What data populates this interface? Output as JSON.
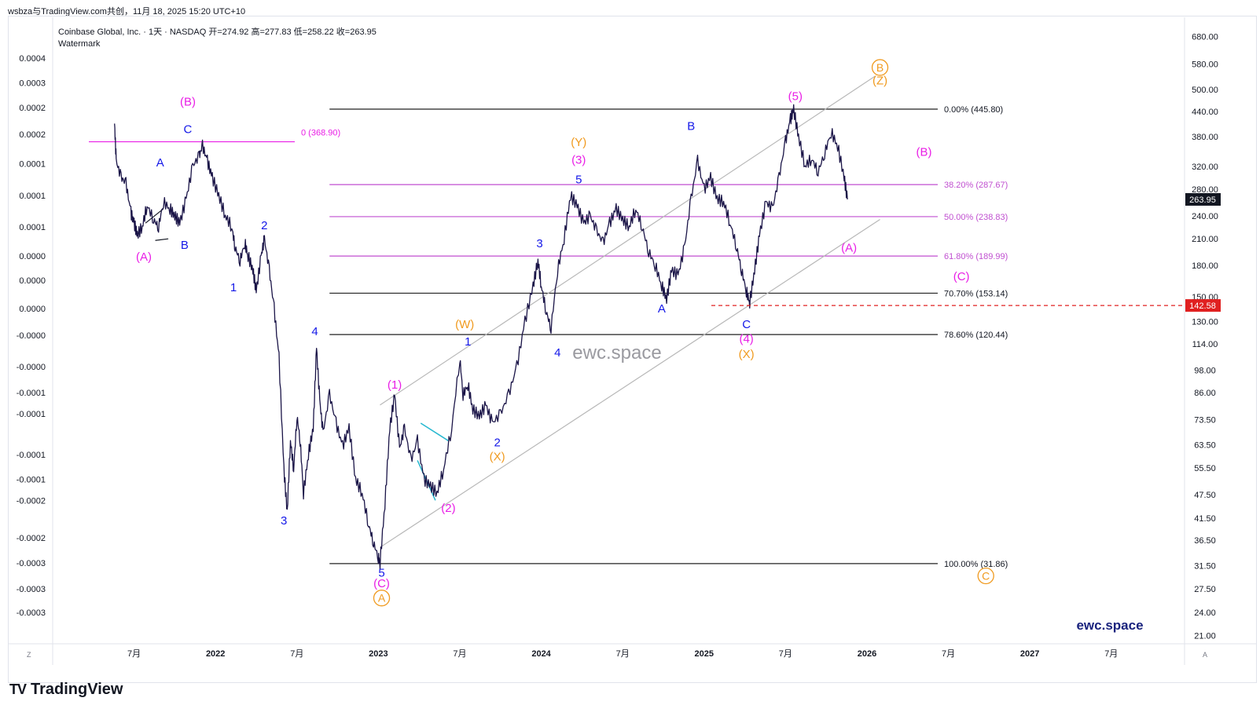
{
  "header": {
    "title": "wsbza与TradingView.com共创，11月 18, 2025 15:20 UTC+10"
  },
  "legend": {
    "symbol": "Coinbase Global, Inc. · 1天 · NASDAQ",
    "open": "开=274.92",
    "high": "高=277.83",
    "low": "低=258.22",
    "close": "收=263.95",
    "indicator": "Watermark"
  },
  "brand": {
    "name": "TradingView",
    "logo": "TV"
  },
  "watermarks": {
    "center": "ewc.space",
    "corner": "ewc.space"
  },
  "colors": {
    "candle": "#1a1447",
    "magenta": "#e91ee6",
    "blue": "#1418e8",
    "orange": "#f09a1e",
    "fib_magenta": "#c04fd0",
    "fib_black": "#222222",
    "channel": "#b8b8b8",
    "cyan": "#27b8d0",
    "red": "#e02020"
  },
  "corner_labels": {
    "left": "Z",
    "right": "A"
  },
  "chart_data": {
    "type": "line",
    "title": "",
    "x_axis": {
      "labels": [
        "7月",
        "2022",
        "7月",
        "2023",
        "7月",
        "2024",
        "7月",
        "2025",
        "7月",
        "2026",
        "7月",
        "2027",
        "7月"
      ]
    },
    "right_axis": {
      "scale": "log",
      "ylim": [
        20,
        760
      ],
      "labels": [
        680,
        580,
        500,
        440,
        380,
        320,
        280,
        240,
        210,
        180,
        150,
        130,
        114,
        98,
        86,
        73.5,
        63.5,
        55.5,
        47.5,
        41.5,
        36.5,
        31.5,
        27.5,
        24,
        21
      ],
      "label_texts": [
        "680.00",
        "580.00",
        "500.00",
        "440.00",
        "380.00",
        "320.00",
        "280.00",
        "240.00",
        "210.00",
        "180.00",
        "150.00",
        "130.00",
        "114.00",
        "98.00",
        "86.00",
        "73.50",
        "63.50",
        "55.50",
        "47.50",
        "41.50",
        "36.50",
        "31.50",
        "27.50",
        "24.00",
        "21.00"
      ],
      "current_price": {
        "value": 263.95,
        "label": "263.95"
      },
      "alert_price": {
        "value": 142.58,
        "label": "142.58"
      }
    },
    "left_axis": {
      "labels": [
        "0.0004",
        "0.0003",
        "0.0002",
        "0.0002",
        "0.0001",
        "0.0001",
        "0.0001",
        "0.0000",
        "0.0000",
        "0.0000",
        "-0.0000",
        "-0.0000",
        "-0.0001",
        "-0.0001",
        "-0.0001",
        "-0.0001",
        "-0.0002",
        "-0.0002",
        "-0.0003",
        "-0.0003",
        "-0.0003"
      ],
      "values": [
        600,
        520,
        450,
        385,
        325,
        270,
        225,
        190,
        165,
        140,
        120,
        100,
        86,
        76,
        60,
        52,
        46,
        37,
        32,
        27.5,
        24
      ]
    },
    "series": [
      {
        "values": [
          [
            2021.38,
            410
          ],
          [
            2021.39,
            330
          ],
          [
            2021.42,
            300
          ],
          [
            2021.45,
            290
          ],
          [
            2021.48,
            245
          ],
          [
            2021.5,
            230
          ],
          [
            2021.52,
            215
          ],
          [
            2021.55,
            225
          ],
          [
            2021.58,
            255
          ],
          [
            2021.62,
            235
          ],
          [
            2021.65,
            225
          ],
          [
            2021.68,
            260
          ],
          [
            2021.72,
            250
          ],
          [
            2021.75,
            240
          ],
          [
            2021.78,
            230
          ],
          [
            2021.82,
            265
          ],
          [
            2021.86,
            320
          ],
          [
            2021.9,
            340
          ],
          [
            2021.92,
            360
          ],
          [
            2021.95,
            330
          ],
          [
            2021.98,
            300
          ],
          [
            2022.02,
            270
          ],
          [
            2022.06,
            240
          ],
          [
            2022.1,
            225
          ],
          [
            2022.12,
            200
          ],
          [
            2022.15,
            185
          ],
          [
            2022.18,
            205
          ],
          [
            2022.2,
            190
          ],
          [
            2022.23,
            175
          ],
          [
            2022.25,
            155
          ],
          [
            2022.28,
            190
          ],
          [
            2022.3,
            210
          ],
          [
            2022.33,
            175
          ],
          [
            2022.36,
            140
          ],
          [
            2022.39,
            105
          ],
          [
            2022.42,
            55
          ],
          [
            2022.44,
            43
          ],
          [
            2022.46,
            65
          ],
          [
            2022.48,
            55
          ],
          [
            2022.5,
            75
          ],
          [
            2022.52,
            65
          ],
          [
            2022.54,
            48
          ],
          [
            2022.57,
            60
          ],
          [
            2022.6,
            70
          ],
          [
            2022.62,
            112
          ],
          [
            2022.64,
            82
          ],
          [
            2022.66,
            68
          ],
          [
            2022.7,
            85
          ],
          [
            2022.74,
            72
          ],
          [
            2022.78,
            63
          ],
          [
            2022.82,
            70
          ],
          [
            2022.86,
            52
          ],
          [
            2022.9,
            48
          ],
          [
            2022.94,
            40
          ],
          [
            2022.97,
            36
          ],
          [
            2023.0,
            33
          ],
          [
            2023.01,
            32
          ],
          [
            2023.04,
            45
          ],
          [
            2023.07,
            70
          ],
          [
            2023.1,
            85
          ],
          [
            2023.13,
            62
          ],
          [
            2023.16,
            70
          ],
          [
            2023.2,
            58
          ],
          [
            2023.24,
            65
          ],
          [
            2023.28,
            52
          ],
          [
            2023.32,
            50
          ],
          [
            2023.36,
            48
          ],
          [
            2023.4,
            55
          ],
          [
            2023.45,
            70
          ],
          [
            2023.5,
            105
          ],
          [
            2023.52,
            85
          ],
          [
            2023.55,
            90
          ],
          [
            2023.58,
            78
          ],
          [
            2023.62,
            75
          ],
          [
            2023.66,
            80
          ],
          [
            2023.7,
            72
          ],
          [
            2023.75,
            76
          ],
          [
            2023.8,
            85
          ],
          [
            2023.85,
            100
          ],
          [
            2023.9,
            130
          ],
          [
            2023.95,
            160
          ],
          [
            2023.98,
            185
          ],
          [
            2024.0,
            160
          ],
          [
            2024.03,
            138
          ],
          [
            2024.06,
            125
          ],
          [
            2024.1,
            175
          ],
          [
            2024.14,
            210
          ],
          [
            2024.18,
            270
          ],
          [
            2024.22,
            255
          ],
          [
            2024.26,
            230
          ],
          [
            2024.3,
            240
          ],
          [
            2024.34,
            220
          ],
          [
            2024.38,
            205
          ],
          [
            2024.42,
            230
          ],
          [
            2024.46,
            250
          ],
          [
            2024.5,
            235
          ],
          [
            2024.54,
            225
          ],
          [
            2024.58,
            250
          ],
          [
            2024.62,
            225
          ],
          [
            2024.66,
            195
          ],
          [
            2024.7,
            180
          ],
          [
            2024.74,
            160
          ],
          [
            2024.77,
            148
          ],
          [
            2024.8,
            175
          ],
          [
            2024.84,
            170
          ],
          [
            2024.88,
            200
          ],
          [
            2024.92,
            265
          ],
          [
            2024.96,
            330
          ],
          [
            2025.0,
            280
          ],
          [
            2025.04,
            300
          ],
          [
            2025.08,
            265
          ],
          [
            2025.12,
            260
          ],
          [
            2025.16,
            230
          ],
          [
            2025.2,
            200
          ],
          [
            2025.23,
            175
          ],
          [
            2025.26,
            155
          ],
          [
            2025.28,
            145
          ],
          [
            2025.31,
            175
          ],
          [
            2025.34,
            215
          ],
          [
            2025.38,
            260
          ],
          [
            2025.42,
            250
          ],
          [
            2025.46,
            300
          ],
          [
            2025.5,
            370
          ],
          [
            2025.53,
            420
          ],
          [
            2025.55,
            445
          ],
          [
            2025.58,
            380
          ],
          [
            2025.62,
            320
          ],
          [
            2025.66,
            335
          ],
          [
            2025.7,
            310
          ],
          [
            2025.74,
            345
          ],
          [
            2025.78,
            390
          ],
          [
            2025.82,
            360
          ],
          [
            2025.86,
            300
          ],
          [
            2025.88,
            263.95
          ]
        ]
      }
    ],
    "fib_levels": [
      {
        "value": 445.8,
        "label": "0.00% (445.80)",
        "color_key": "fib_black"
      },
      {
        "value": 287.67,
        "label": "38.20% (287.67)",
        "color_key": "fib_magenta"
      },
      {
        "value": 238.83,
        "label": "50.00% (238.83)",
        "color_key": "fib_magenta"
      },
      {
        "value": 189.99,
        "label": "61.80% (189.99)",
        "color_key": "fib_magenta"
      },
      {
        "value": 153.14,
        "label": "70.70% (153.14)",
        "color_key": "fib_black"
      },
      {
        "value": 120.44,
        "label": "78.60% (120.44)",
        "color_key": "fib_black"
      },
      {
        "value": 31.86,
        "label": "100.00% (31.86)",
        "color_key": "fib_black"
      }
    ],
    "old_fib": {
      "value": 368.9,
      "label": "0 (368.90)",
      "x_start": 2021.58,
      "x_end": 2022.65
    },
    "fib_x_range": [
      2022.7,
      2025.8
    ],
    "channel_lines": [
      {
        "from": [
          2023.01,
          80
        ],
        "to": [
          2026.05,
          540
        ]
      },
      {
        "from": [
          2023.01,
          35
        ],
        "to": [
          2026.08,
          235
        ]
      }
    ],
    "cyan_lines": [
      {
        "from": [
          2023.26,
          72
        ],
        "to": [
          2023.43,
          65
        ]
      },
      {
        "from": [
          2023.24,
          58
        ],
        "to": [
          2023.35,
          46
        ]
      }
    ],
    "black_small_lines": [
      {
        "from": [
          2021.57,
          230
        ],
        "to": [
          2021.68,
          250
        ]
      },
      {
        "from": [
          2021.63,
          208
        ],
        "to": [
          2021.71,
          210
        ]
      }
    ],
    "wave_labels": [
      {
        "x": 2021.56,
        "y": 185,
        "text": "(A)",
        "color_key": "magenta"
      },
      {
        "x": 2021.83,
        "y": 455,
        "text": "(B)",
        "color_key": "magenta"
      },
      {
        "x": 2021.83,
        "y": 388,
        "text": "C",
        "color_key": "blue"
      },
      {
        "x": 2021.66,
        "y": 320,
        "text": "A",
        "color_key": "blue"
      },
      {
        "x": 2021.81,
        "y": 198,
        "text": "B",
        "color_key": "blue"
      },
      {
        "x": 2022.11,
        "y": 155,
        "text": "1",
        "color_key": "blue"
      },
      {
        "x": 2022.3,
        "y": 222,
        "text": "2",
        "color_key": "blue"
      },
      {
        "x": 2022.42,
        "y": 40,
        "text": "3",
        "color_key": "blue"
      },
      {
        "x": 2022.61,
        "y": 120,
        "text": "4",
        "color_key": "blue"
      },
      {
        "x": 2023.02,
        "y": 29.5,
        "text": "5",
        "color_key": "blue"
      },
      {
        "x": 2023.02,
        "y": 27.8,
        "text": "(C)",
        "color_key": "magenta"
      },
      {
        "x": 2023.02,
        "y": 25.5,
        "text": "A",
        "color_key": "orange",
        "circled": true
      },
      {
        "x": 2023.1,
        "y": 88,
        "text": "(1)",
        "color_key": "magenta"
      },
      {
        "x": 2023.43,
        "y": 43,
        "text": "(2)",
        "color_key": "magenta"
      },
      {
        "x": 2023.55,
        "y": 113,
        "text": "1",
        "color_key": "blue"
      },
      {
        "x": 2023.53,
        "y": 125,
        "text": "(W)",
        "color_key": "orange"
      },
      {
        "x": 2023.73,
        "y": 63,
        "text": "2",
        "color_key": "blue"
      },
      {
        "x": 2023.73,
        "y": 58,
        "text": "(X)",
        "color_key": "orange"
      },
      {
        "x": 2023.99,
        "y": 200,
        "text": "3",
        "color_key": "blue"
      },
      {
        "x": 2024.1,
        "y": 106,
        "text": "4",
        "color_key": "blue"
      },
      {
        "x": 2024.23,
        "y": 290,
        "text": "5",
        "color_key": "blue"
      },
      {
        "x": 2024.23,
        "y": 325,
        "text": "(3)",
        "color_key": "magenta"
      },
      {
        "x": 2024.23,
        "y": 360,
        "text": "(Y)",
        "color_key": "orange"
      },
      {
        "x": 2024.92,
        "y": 395,
        "text": "B",
        "color_key": "blue"
      },
      {
        "x": 2024.74,
        "y": 137,
        "text": "A",
        "color_key": "blue"
      },
      {
        "x": 2025.26,
        "y": 125,
        "text": "C",
        "color_key": "blue"
      },
      {
        "x": 2025.26,
        "y": 115,
        "text": "(4)",
        "color_key": "magenta"
      },
      {
        "x": 2025.26,
        "y": 105,
        "text": "(X)",
        "color_key": "orange"
      },
      {
        "x": 2025.56,
        "y": 470,
        "text": "(5)",
        "color_key": "magenta"
      },
      {
        "x": 2026.08,
        "y": 515,
        "text": "(Z)",
        "color_key": "orange"
      },
      {
        "x": 2026.08,
        "y": 555,
        "text": "B",
        "color_key": "orange",
        "circled": true
      },
      {
        "x": 2026.35,
        "y": 340,
        "text": "(B)",
        "color_key": "magenta"
      },
      {
        "x": 2025.89,
        "y": 195,
        "text": "(A)",
        "color_key": "magenta"
      },
      {
        "x": 2026.58,
        "y": 165,
        "text": "(C)",
        "color_key": "magenta"
      },
      {
        "x": 2026.73,
        "y": 29,
        "text": "C",
        "color_key": "orange",
        "circled": true
      }
    ]
  }
}
